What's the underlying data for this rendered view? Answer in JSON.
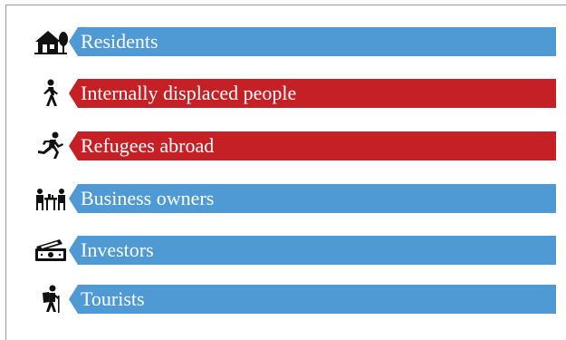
{
  "colors": {
    "blue": "#4f9ad5",
    "red": "#c52026",
    "icon": "#111111"
  },
  "items": [
    {
      "label": "Residents",
      "icon": "house-icon",
      "color": "#4f9ad5"
    },
    {
      "label": "Internally displaced people",
      "icon": "walking-person-icon",
      "color": "#c52026"
    },
    {
      "label": "Refugees abroad",
      "icon": "running-person-icon",
      "color": "#c52026"
    },
    {
      "label": "Business owners",
      "icon": "business-meeting-icon",
      "color": "#4f9ad5"
    },
    {
      "label": "Investors",
      "icon": "money-stack-icon",
      "color": "#4f9ad5"
    },
    {
      "label": "Tourists",
      "icon": "hiker-icon",
      "color": "#4f9ad5"
    }
  ]
}
